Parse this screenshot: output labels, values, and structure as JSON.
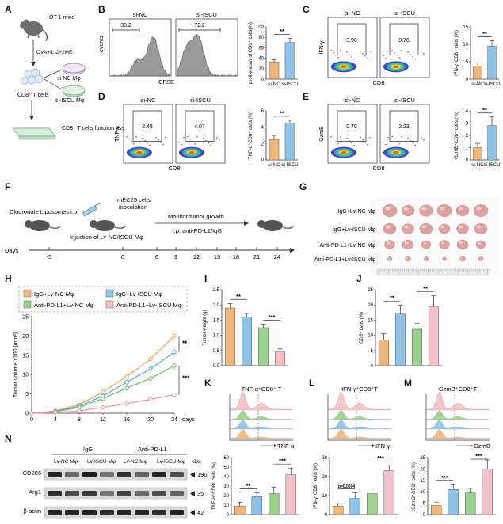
{
  "panel_labels": [
    "A",
    "B",
    "C",
    "D",
    "E",
    "F",
    "G",
    "H",
    "I",
    "J",
    "K",
    "L",
    "M",
    "N"
  ],
  "panel_a": {
    "mouse_label": "OT-1 mice",
    "treatment": "OVA+IL-2+2ME",
    "cells_label": "CD8⁺ T cells",
    "dish1": "si-NC Mφ",
    "dish2": "si-ISCU Mφ",
    "assay_label": "CD8⁺ T cells function assay"
  },
  "panel_b": {
    "hist_titles": [
      "si-NC",
      "si-ISCU"
    ],
    "gate_values": [
      "33.2",
      "72.2"
    ],
    "x_axis": "CFSE",
    "y_axis": "events"
  },
  "flow_panels": [
    {
      "id": "C",
      "titles": [
        "si-NC",
        "si-ISCU"
      ],
      "values": [
        "3.90",
        "8.76"
      ],
      "x_axis": "CD8",
      "y_axis": "IFN-γ"
    },
    {
      "id": "D",
      "titles": [
        "si-NC",
        "si-ISCU"
      ],
      "values": [
        "2.48",
        "4.07"
      ],
      "x_axis": "CD8",
      "y_axis": "TNF-α"
    },
    {
      "id": "E",
      "titles": [
        "si-NC",
        "si-ISCU"
      ],
      "values": [
        "0.70",
        "2.23"
      ],
      "x_axis": "CD8",
      "y_axis": "GzmB"
    }
  ],
  "panel_f": {
    "step1": "Clodronate Liposomes i.p.",
    "step2a": "mEC25 cells",
    "step2b": "inoculation",
    "step3": "Monitor tumor growth",
    "step4": "i.p. anti-PD-L1/IgG",
    "step5": "Injection of Lv-NC/ISCU Mφ",
    "axis_label": "Days",
    "ticks": [
      "-5",
      "0",
      "6",
      "9",
      "12",
      "15",
      "18",
      "21",
      "24"
    ]
  },
  "panel_g": {
    "rows": [
      "IgG+Lv-NC Mφ",
      "IgG+Lv-ISCU Mφ",
      "Anti-PD-L1+Lv-NC Mφ",
      "Anti-PD-L1+Lv-ISCU Mφ"
    ]
  },
  "panel_k_titles": [
    "TNF-α⁺CD8⁺ T",
    "IFN-γ⁺CD8⁺T",
    "GzmB⁺CD8⁺T"
  ],
  "panel_k_axes": [
    "TNF-α",
    "IFN-γ",
    "GzmB"
  ],
  "panel_n": {
    "group_labels": [
      "IgG",
      "Anti-PD-L1"
    ],
    "lane_labels": [
      "Lv-NC Mφ",
      "Lv-ISCU Mφ",
      "Lv-NC Mφ",
      "Lv-ISCU Mφ"
    ],
    "proteins": [
      "CD206",
      "Arg1",
      "β-actin"
    ],
    "kda_header": "kDa",
    "kda": [
      "190",
      "35",
      "42"
    ]
  },
  "colors": {
    "nc": "#f0b77b",
    "iscu": "#8ec3e6",
    "g1": "#f0b77b",
    "g2": "#8ec3e6",
    "g3": "#9cd08f",
    "g4": "#f4c2c6",
    "hist_fill": "#9a9a9a"
  },
  "chart_data": [
    {
      "id": "B",
      "type": "bar",
      "categories": [
        "si-NC",
        "si-ISCU"
      ],
      "values": [
        33,
        70
      ],
      "errors": [
        4,
        8
      ],
      "ylabel": "proliferation of CD8⁺ cells(%)",
      "ylim": [
        0,
        100
      ],
      "yticks": [
        "0",
        "20",
        "40",
        "60",
        "80",
        "100"
      ],
      "sig": "**"
    },
    {
      "id": "C",
      "type": "bar",
      "categories": [
        "si-NC",
        "si-ISCU"
      ],
      "values": [
        3.8,
        9.5
      ],
      "errors": [
        0.9,
        1.5
      ],
      "ylabel": "IFN-γ⁺CD8⁺ cells (%)",
      "ylim": [
        0,
        15
      ],
      "yticks": [
        "0",
        "5",
        "10",
        "15"
      ],
      "sig": "**"
    },
    {
      "id": "D",
      "type": "bar",
      "categories": [
        "si-NC",
        "si-ISCU"
      ],
      "values": [
        2.5,
        4.5
      ],
      "errors": [
        0.5,
        0.35
      ],
      "ylabel": "TNF-α⁺CD8⁺ cells (%)",
      "ylim": [
        0,
        6
      ],
      "yticks": [
        "0",
        "2",
        "4",
        "6"
      ],
      "sig": "**"
    },
    {
      "id": "E",
      "type": "bar",
      "categories": [
        "si-NC",
        "si-ISCU"
      ],
      "values": [
        1.0,
        2.8
      ],
      "errors": [
        0.35,
        0.7
      ],
      "ylabel": "GzmB⁺CD8⁺ cells (%)",
      "ylim": [
        0,
        4
      ],
      "yticks": [
        "0",
        "1",
        "2",
        "3",
        "4"
      ],
      "sig": "**"
    },
    {
      "id": "H",
      "type": "line",
      "x": [
        0,
        4,
        8,
        12,
        16,
        20,
        24
      ],
      "xticks": [
        "0",
        "4",
        "8",
        "12",
        "16",
        "20",
        "24"
      ],
      "xlabel_suffix": "days",
      "ylabel": "Tumor volume x100 (mm³)",
      "ylim": [
        0,
        25
      ],
      "yticks": [
        "0",
        "5",
        "10",
        "15",
        "20",
        "25"
      ],
      "legend": [
        "IgG+Lv-NC Mφ",
        "IgG+Lv-ISCU Mφ",
        "Anti-PD-L1+Lv-NC Mφ",
        "Anti-PD-L1+Lv-ISCU Mφ"
      ],
      "series": [
        {
          "name": "IgG+Lv-NC Mφ",
          "values": [
            0,
            0.6,
            2.2,
            5.5,
            9.5,
            14.0,
            20.0
          ]
        },
        {
          "name": "IgG+Lv-ISCU Mφ",
          "values": [
            0,
            0.5,
            1.8,
            4.5,
            8.0,
            11.5,
            15.8
          ]
        },
        {
          "name": "Anti-PD-L1+Lv-NC Mφ",
          "values": [
            0,
            0.4,
            1.5,
            3.8,
            6.5,
            9.0,
            12.3
          ]
        },
        {
          "name": "Anti-PD-L1+Lv-ISCU Mφ",
          "values": [
            0,
            0.2,
            0.6,
            1.5,
            2.5,
            3.6,
            4.8
          ]
        }
      ],
      "sig": [
        "**",
        "***"
      ]
    },
    {
      "id": "I",
      "type": "bar",
      "categories": [
        "IgG+Lv-NC Mφ",
        "IgG+Lv-ISCU Mφ",
        "Anti-PD-L1+Lv-NC Mφ",
        "Anti-PD-L1+Lv-ISCU Mφ"
      ],
      "values": [
        1.9,
        1.6,
        1.25,
        0.45
      ],
      "errors": [
        0.15,
        0.12,
        0.12,
        0.1
      ],
      "ylabel": "Tumor weight (g)",
      "ylim": [
        0,
        2.5
      ],
      "yticks": [
        "0.0",
        "0.5",
        "1.0",
        "1.5",
        "2.0",
        "2.5"
      ],
      "sig": [
        "**",
        "***"
      ]
    },
    {
      "id": "J",
      "type": "bar",
      "categories": [
        "IgG+Lv-NC Mφ",
        "IgG+Lv-ISCU Mφ",
        "Anti-PD-L1+Lv-NC Mφ",
        "Anti-PD-L1+Lv-ISCU Mφ"
      ],
      "values": [
        8.5,
        17,
        12,
        19.5
      ],
      "errors": [
        2,
        3,
        2,
        3.5
      ],
      "ylabel": "CD8⁺ cells (%)",
      "ylim": [
        0,
        25
      ],
      "yticks": [
        "0",
        "5",
        "10",
        "15",
        "20",
        "25"
      ],
      "sig": [
        "**",
        "**"
      ]
    },
    {
      "id": "K",
      "type": "bar",
      "categories": [
        "IgG+Lv-NC Mφ",
        "IgG+Lv-ISCU Mφ",
        "Anti-PD-L1+Lv-NC Mφ",
        "Anti-PD-L1+Lv-ISCU Mφ"
      ],
      "values": [
        9,
        19,
        22,
        42
      ],
      "errors": [
        4,
        4,
        7,
        7
      ],
      "ylabel": "TNF-α⁺CD8⁺ cells (%)",
      "ylim": [
        0,
        60
      ],
      "yticks": [
        "0",
        "10",
        "20",
        "30",
        "40",
        "50",
        "60"
      ],
      "sig": [
        "**",
        "***"
      ]
    },
    {
      "id": "L",
      "type": "bar",
      "categories": [
        "IgG+Lv-NC Mφ",
        "IgG+Lv-ISCU Mφ",
        "Anti-PD-L1+Lv-NC Mφ",
        "Anti-PD-L1+Lv-ISCU Mφ"
      ],
      "values": [
        4.5,
        8.5,
        11,
        23
      ],
      "errors": [
        1.5,
        3,
        3,
        3
      ],
      "ylabel": "IFN-γ⁺CD8⁺ cells (%)",
      "ylim": [
        0,
        30
      ],
      "yticks": [
        "0",
        "10",
        "20",
        "30"
      ],
      "sig": [
        "p=0.0604",
        "***"
      ]
    },
    {
      "id": "M",
      "type": "bar",
      "categories": [
        "IgG+Lv-NC Mφ",
        "IgG+Lv-ISCU Mφ",
        "Anti-PD-L1+Lv-NC Mφ",
        "Anti-PD-L1+Lv-ISCU Mφ"
      ],
      "values": [
        4,
        11,
        9.5,
        20
      ],
      "errors": [
        1.5,
        2,
        2,
        4
      ],
      "ylabel": "GzmB⁺CD8⁺ cells (%)",
      "ylim": [
        0,
        25
      ],
      "yticks": [
        "0",
        "5",
        "10",
        "15",
        "20",
        "25"
      ],
      "sig": [
        "***",
        "***"
      ]
    }
  ]
}
